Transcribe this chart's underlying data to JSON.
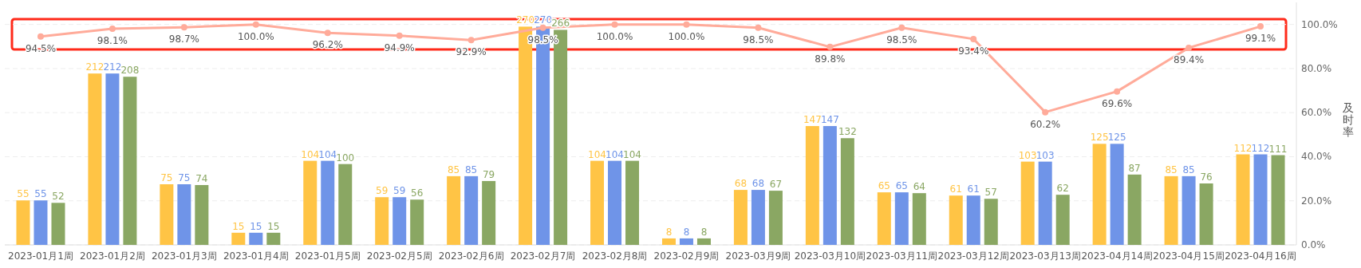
{
  "chart_data": {
    "type": "bar",
    "categories": [
      "2023-01月1周",
      "2023-01月2周",
      "2023-01月3周",
      "2023-01月4周",
      "2023-01月5周",
      "2023-02月5周",
      "2023-02月6周",
      "2023-02月7周",
      "2023-02月8周",
      "2023-02月9周",
      "2023-03月9周",
      "2023-03月10周",
      "2023-03月11周",
      "2023-03月12周",
      "2023-03月13周",
      "2023-04月14周",
      "2023-04月15周",
      "2023-04月16周"
    ],
    "series": [
      {
        "color": "#ffc445",
        "values": [
          55,
          212,
          75,
          15,
          104,
          59,
          85,
          270,
          104,
          8,
          68,
          147,
          65,
          61,
          103,
          125,
          85,
          112
        ]
      },
      {
        "color": "#6f94e8",
        "values": [
          55,
          212,
          75,
          15,
          104,
          59,
          85,
          270,
          104,
          8,
          68,
          147,
          65,
          61,
          103,
          125,
          85,
          112
        ]
      },
      {
        "color": "#8aa763",
        "values": [
          52,
          208,
          74,
          15,
          100,
          56,
          79,
          266,
          104,
          8,
          67,
          132,
          64,
          57,
          62,
          87,
          76,
          111
        ]
      },
      {
        "type": "line",
        "axis": "y2",
        "color": "#ffab9a",
        "marker": "circle",
        "values": [
          94.5,
          98.1,
          98.7,
          100.0,
          96.2,
          94.9,
          92.9,
          98.5,
          100.0,
          100.0,
          98.5,
          89.8,
          98.5,
          93.4,
          60.2,
          69.6,
          89.4,
          99.1
        ],
        "value_labels": [
          "94.5%",
          "98.1%",
          "98.7%",
          "100.0%",
          "96.2%",
          "94.9%",
          "92.9%",
          "98.5%",
          "100.0%",
          "100.0%",
          "98.5%",
          "89.8%",
          "98.5%",
          "93.4%",
          "60.2%",
          "69.6%",
          "89.4%",
          "99.1%"
        ]
      }
    ],
    "ylim": [
      0,
      300
    ],
    "y2lim": [
      0,
      110
    ],
    "y2ticks": [
      {
        "value": 0,
        "label": "0.0%"
      },
      {
        "value": 20,
        "label": "20.0%"
      },
      {
        "value": 40,
        "label": "40.0%"
      },
      {
        "value": 60,
        "label": "60.0%"
      },
      {
        "value": 80,
        "label": "80.0%"
      },
      {
        "value": 100,
        "label": "100.0%"
      }
    ],
    "y2label": "及时率",
    "data_labels": true,
    "grid": true
  }
}
